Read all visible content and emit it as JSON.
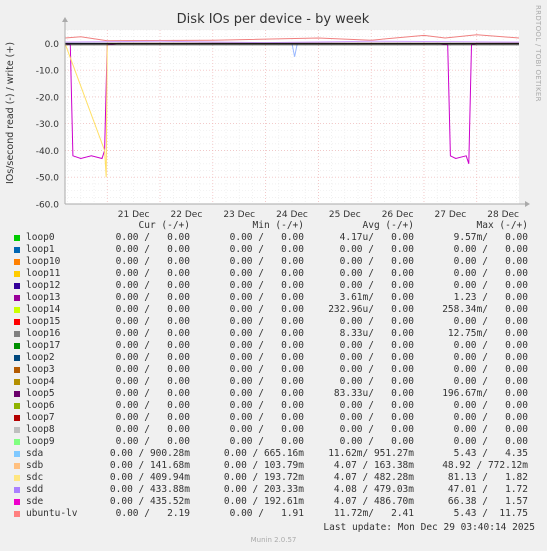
{
  "chart_data": {
    "type": "line",
    "title": "Disk IOs per device - by week",
    "ylabel": "IOs/second read (-) / write (+)",
    "ylim": [
      -60,
      5
    ],
    "yticks": [
      "0.0",
      "-10.0",
      "-20.0",
      "-30.0",
      "-40.0",
      "-50.0",
      "-60.0"
    ],
    "ytick_values": [
      0,
      -10,
      -20,
      -30,
      -40,
      -50,
      -60
    ],
    "xticks": [
      "21 Dec",
      "22 Dec",
      "23 Dec",
      "24 Dec",
      "25 Dec",
      "26 Dec",
      "27 Dec",
      "28 Dec"
    ],
    "xlim": [
      20.2,
      28.8
    ],
    "grid": true,
    "series": [
      {
        "name": "loop5",
        "color": "#cc00cc",
        "values": [
          [
            20.2,
            0
          ],
          [
            20.3,
            -0.5
          ],
          [
            20.35,
            -42
          ],
          [
            20.5,
            -43
          ],
          [
            20.7,
            -42
          ],
          [
            20.9,
            -43
          ],
          [
            20.95,
            -40
          ],
          [
            21.0,
            -0.5
          ],
          [
            21.2,
            0
          ],
          [
            27.3,
            0
          ],
          [
            27.45,
            -0.5
          ],
          [
            27.5,
            -42
          ],
          [
            27.6,
            -43
          ],
          [
            27.8,
            -42
          ],
          [
            27.85,
            -45
          ],
          [
            27.9,
            -0.5
          ],
          [
            28.0,
            0
          ],
          [
            28.8,
            0
          ]
        ]
      },
      {
        "name": "sda",
        "color": "#99b8ff",
        "values": [
          [
            20.2,
            0
          ],
          [
            24.5,
            0
          ],
          [
            24.55,
            -5
          ],
          [
            24.6,
            0
          ],
          [
            28.8,
            0
          ]
        ]
      },
      {
        "name": "sdc",
        "color": "#ffe066",
        "values": [
          [
            20.2,
            0
          ],
          [
            20.95,
            -40
          ],
          [
            20.98,
            -50
          ],
          [
            21.0,
            0
          ],
          [
            28.8,
            0
          ]
        ]
      },
      {
        "name": "ubuntu-lv",
        "color": "#f08080",
        "values": [
          [
            20.2,
            2.0
          ],
          [
            20.5,
            2.5
          ],
          [
            21.0,
            1.0
          ],
          [
            23.0,
            1.2
          ],
          [
            25.0,
            2.0
          ],
          [
            26.0,
            1.2
          ],
          [
            27.0,
            3.0
          ],
          [
            27.4,
            2.0
          ],
          [
            28.0,
            3.2
          ],
          [
            28.8,
            2.0
          ]
        ]
      },
      {
        "name": "sdb",
        "color": "#d0a0ff",
        "values": [
          [
            20.2,
            0.5
          ],
          [
            22.0,
            0.8
          ],
          [
            24.0,
            0.3
          ],
          [
            26.0,
            0.8
          ],
          [
            28.8,
            0.5
          ]
        ]
      },
      {
        "name": "loop13",
        "color": "#222222",
        "values": [
          [
            20.2,
            -0.5
          ],
          [
            28.8,
            -0.5
          ]
        ]
      }
    ]
  },
  "side_label": "RRDTOOL / TOBI OETIKER",
  "munin_version": "Munin 2.0.57",
  "last_update": "Last update: Mon Dec 29 03:40:14 2025",
  "legend": {
    "headers": {
      "cur": "Cur (-/+)",
      "min": "Min (-/+)",
      "avg": "Avg (-/+)",
      "max": "Max (-/+)"
    },
    "rows": [
      {
        "name": "loop0",
        "color": "#00cc00",
        "cur": "0.00 /   0.00",
        "min": "0.00 /   0.00",
        "avg": "4.17u/   0.00",
        "max": "9.57m/   0.00"
      },
      {
        "name": "loop1",
        "color": "#0066b3",
        "cur": "0.00 /   0.00",
        "min": "0.00 /   0.00",
        "avg": "0.00 /   0.00",
        "max": "0.00 /   0.00"
      },
      {
        "name": "loop10",
        "color": "#ff8000",
        "cur": "0.00 /   0.00",
        "min": "0.00 /   0.00",
        "avg": "0.00 /   0.00",
        "max": "0.00 /   0.00"
      },
      {
        "name": "loop11",
        "color": "#ffcc00",
        "cur": "0.00 /   0.00",
        "min": "0.00 /   0.00",
        "avg": "0.00 /   0.00",
        "max": "0.00 /   0.00"
      },
      {
        "name": "loop12",
        "color": "#330099",
        "cur": "0.00 /   0.00",
        "min": "0.00 /   0.00",
        "avg": "0.00 /   0.00",
        "max": "0.00 /   0.00"
      },
      {
        "name": "loop13",
        "color": "#990099",
        "cur": "0.00 /   0.00",
        "min": "0.00 /   0.00",
        "avg": "3.61m/   0.00",
        "max": "1.23 /   0.00"
      },
      {
        "name": "loop14",
        "color": "#ccff00",
        "cur": "0.00 /   0.00",
        "min": "0.00 /   0.00",
        "avg": "232.96u/   0.00",
        "max": "258.34m/   0.00"
      },
      {
        "name": "loop15",
        "color": "#ff0000",
        "cur": "0.00 /   0.00",
        "min": "0.00 /   0.00",
        "avg": "0.00 /   0.00",
        "max": "0.00 /   0.00"
      },
      {
        "name": "loop16",
        "color": "#808080",
        "cur": "0.00 /   0.00",
        "min": "0.00 /   0.00",
        "avg": "8.33u/   0.00",
        "max": "12.75m/   0.00"
      },
      {
        "name": "loop17",
        "color": "#008f00",
        "cur": "0.00 /   0.00",
        "min": "0.00 /   0.00",
        "avg": "0.00 /   0.00",
        "max": "0.00 /   0.00"
      },
      {
        "name": "loop2",
        "color": "#00487d",
        "cur": "0.00 /   0.00",
        "min": "0.00 /   0.00",
        "avg": "0.00 /   0.00",
        "max": "0.00 /   0.00"
      },
      {
        "name": "loop3",
        "color": "#b35a00",
        "cur": "0.00 /   0.00",
        "min": "0.00 /   0.00",
        "avg": "0.00 /   0.00",
        "max": "0.00 /   0.00"
      },
      {
        "name": "loop4",
        "color": "#b38f00",
        "cur": "0.00 /   0.00",
        "min": "0.00 /   0.00",
        "avg": "0.00 /   0.00",
        "max": "0.00 /   0.00"
      },
      {
        "name": "loop5",
        "color": "#6b006b",
        "cur": "0.00 /   0.00",
        "min": "0.00 /   0.00",
        "avg": "83.33u/   0.00",
        "max": "196.67m/   0.00"
      },
      {
        "name": "loop6",
        "color": "#8fb300",
        "cur": "0.00 /   0.00",
        "min": "0.00 /   0.00",
        "avg": "0.00 /   0.00",
        "max": "0.00 /   0.00"
      },
      {
        "name": "loop7",
        "color": "#b30000",
        "cur": "0.00 /   0.00",
        "min": "0.00 /   0.00",
        "avg": "0.00 /   0.00",
        "max": "0.00 /   0.00"
      },
      {
        "name": "loop8",
        "color": "#bebebe",
        "cur": "0.00 /   0.00",
        "min": "0.00 /   0.00",
        "avg": "0.00 /   0.00",
        "max": "0.00 /   0.00"
      },
      {
        "name": "loop9",
        "color": "#80ff80",
        "cur": "0.00 /   0.00",
        "min": "0.00 /   0.00",
        "avg": "0.00 /   0.00",
        "max": "0.00 /   0.00"
      },
      {
        "name": "sda",
        "color": "#80c9ff",
        "cur": "0.00 / 900.28m",
        "min": "0.00 / 665.16m",
        "avg": "11.62m/ 951.27m",
        "max": "5.43 /   4.35"
      },
      {
        "name": "sdb",
        "color": "#ffc080",
        "cur": "0.00 / 141.68m",
        "min": "0.00 / 103.79m",
        "avg": "4.07 / 163.38m",
        "max": "48.92 / 772.12m"
      },
      {
        "name": "sdc",
        "color": "#ffe680",
        "cur": "0.00 / 409.94m",
        "min": "0.00 / 193.72m",
        "avg": "4.07 / 482.28m",
        "max": "81.13 /   1.82"
      },
      {
        "name": "sdd",
        "color": "#aa80ff",
        "cur": "0.00 / 433.88m",
        "min": "0.00 / 203.33m",
        "avg": "4.08 / 479.03m",
        "max": "47.01 /   1.72"
      },
      {
        "name": "sde",
        "color": "#ee00cc",
        "cur": "0.00 / 435.52m",
        "min": "0.00 / 192.61m",
        "avg": "4.07 / 486.70m",
        "max": "66.38 /   1.57"
      },
      {
        "name": "ubuntu-lv",
        "color": "#ff8080",
        "cur": "0.00 /   2.19",
        "min": "0.00 /   1.91",
        "avg": "11.72m/   2.41",
        "max": "5.43 /  11.75"
      }
    ]
  }
}
